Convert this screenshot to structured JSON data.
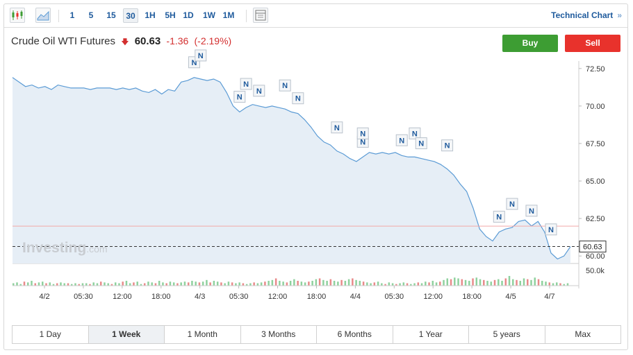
{
  "toolbar": {
    "intervals": [
      "1",
      "5",
      "15",
      "30",
      "1H",
      "5H",
      "1D",
      "1W",
      "1M"
    ],
    "active_interval": "30",
    "technical_chart_label": "Technical Chart",
    "technical_chart_arrow": "»"
  },
  "quote": {
    "name": "Crude Oil WTI Futures",
    "price": "60.63",
    "change": "-1.36",
    "change_pct": "(-2.19%)"
  },
  "actions": {
    "buy_label": "Buy",
    "sell_label": "Sell"
  },
  "watermark": {
    "brand": "Investing",
    "suffix": ".com"
  },
  "colors": {
    "up": "#3d9d33",
    "down": "#e8322c",
    "line": "#5b9bd5",
    "accent": "#1e5a9c"
  },
  "chart_data": {
    "type": "area",
    "y_ticks": [
      "72.50",
      "70.00",
      "67.50",
      "65.00",
      "62.50",
      "60.00"
    ],
    "ylim": [
      59.5,
      73.0
    ],
    "current_price_label": "60.63",
    "reference_level": 61.99,
    "volume_label": "50.0k",
    "x_ticks": [
      "4/2",
      "05:30",
      "12:00",
      "18:00",
      "4/3",
      "05:30",
      "12:00",
      "18:00",
      "4/4",
      "05:30",
      "12:00",
      "18:00",
      "4/5",
      "4/7"
    ],
    "price": [
      71.9,
      71.6,
      71.3,
      71.4,
      71.2,
      71.3,
      71.1,
      71.4,
      71.3,
      71.2,
      71.2,
      71.2,
      71.1,
      71.2,
      71.2,
      71.2,
      71.1,
      71.2,
      71.1,
      71.2,
      71.0,
      70.9,
      71.1,
      70.8,
      71.1,
      71.0,
      71.6,
      71.7,
      71.9,
      71.8,
      71.7,
      71.8,
      71.6,
      70.9,
      70.0,
      69.6,
      69.9,
      70.1,
      70.0,
      69.9,
      70.0,
      69.9,
      69.8,
      69.6,
      69.5,
      69.1,
      68.6,
      68.0,
      67.6,
      67.4,
      67.0,
      66.8,
      66.5,
      66.3,
      66.6,
      66.9,
      66.8,
      66.9,
      66.8,
      66.9,
      66.7,
      66.6,
      66.6,
      66.5,
      66.4,
      66.3,
      66.1,
      65.8,
      65.4,
      64.8,
      64.3,
      63.2,
      61.8,
      61.3,
      61.0,
      61.6,
      61.8,
      61.9,
      62.3,
      62.4,
      62.0,
      62.3,
      61.6,
      60.2,
      59.8,
      60.0,
      60.63
    ],
    "volume": [
      3,
      4,
      2,
      5,
      4,
      6,
      3,
      4,
      5,
      3,
      4,
      2,
      3,
      4,
      3,
      3,
      2,
      3,
      2,
      3,
      3,
      2,
      4,
      3,
      5,
      4,
      3,
      2,
      4,
      3,
      5,
      6,
      3,
      4,
      5,
      2,
      3,
      5,
      4,
      3,
      6,
      4,
      3,
      5,
      4,
      3,
      4,
      5,
      4,
      6,
      5,
      4,
      5,
      7,
      4,
      6,
      5,
      4,
      3,
      5,
      4,
      3,
      4,
      3,
      2,
      3,
      4,
      3,
      4,
      5,
      6,
      7,
      9,
      6,
      5,
      4,
      6,
      8,
      6,
      5,
      4,
      5,
      6,
      8,
      9,
      7,
      6,
      8,
      6,
      5,
      7,
      6,
      8,
      9,
      7,
      6,
      5,
      4,
      3,
      4,
      5,
      3,
      2,
      4,
      3,
      2,
      3,
      4,
      3,
      2,
      3,
      4,
      3,
      5,
      4,
      6,
      4,
      5,
      7,
      9,
      8,
      10,
      9,
      8,
      7,
      6,
      9,
      10,
      8,
      7,
      6,
      5,
      7,
      8,
      6,
      9,
      12,
      8,
      7,
      6,
      9,
      8,
      7,
      10,
      8,
      6,
      5,
      4,
      3,
      4,
      3,
      2,
      3
    ],
    "markers": [
      {
        "label": "N",
        "idx": 28
      },
      {
        "label": "N",
        "idx": 29
      },
      {
        "label": "N",
        "idx": 35
      },
      {
        "label": "N",
        "idx": 36
      },
      {
        "label": "N",
        "idx": 38
      },
      {
        "label": "N",
        "idx": 42
      },
      {
        "label": "N",
        "idx": 44
      },
      {
        "label": "N",
        "idx": 50
      },
      {
        "label": "N",
        "idx": 54
      },
      {
        "label": "N",
        "idx": 54
      },
      {
        "label": "N",
        "idx": 60
      },
      {
        "label": "N",
        "idx": 62
      },
      {
        "label": "N",
        "idx": 63
      },
      {
        "label": "N",
        "idx": 67
      },
      {
        "label": "N",
        "idx": 75
      },
      {
        "label": "N",
        "idx": 77
      },
      {
        "label": "N",
        "idx": 80
      },
      {
        "label": "N",
        "idx": 83
      }
    ]
  },
  "periods": [
    "1 Day",
    "1 Week",
    "1 Month",
    "3 Months",
    "6 Months",
    "1 Year",
    "5 years",
    "Max"
  ],
  "active_period": "1 Week"
}
